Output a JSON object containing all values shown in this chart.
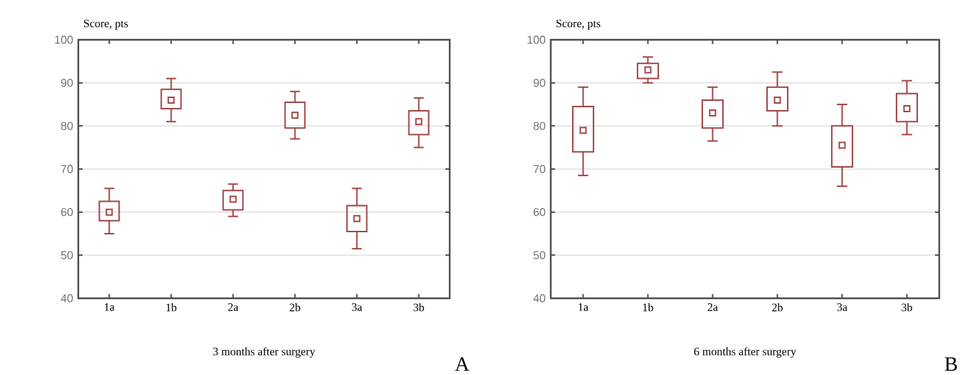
{
  "chart_data": [
    {
      "type": "box",
      "ylabel": "Score, pts",
      "xlabel": "3 months after surgery",
      "annotations": [
        "A"
      ],
      "color": "#a04444",
      "grid": "y",
      "ylim": [
        40,
        100
      ],
      "yticks": [
        40,
        50,
        60,
        70,
        80,
        90,
        100
      ],
      "categories": [
        "1a",
        "1b",
        "2a",
        "2b",
        "3a",
        "3b"
      ],
      "boxes": [
        {
          "low": 55,
          "q1": 58,
          "median": 60,
          "q3": 62.5,
          "high": 65.5
        },
        {
          "low": 81,
          "q1": 84,
          "median": 86,
          "q3": 88.5,
          "high": 91
        },
        {
          "low": 59,
          "q1": 60.5,
          "median": 63,
          "q3": 65,
          "high": 66.5
        },
        {
          "low": 77,
          "q1": 79.5,
          "median": 82.5,
          "q3": 85.5,
          "high": 88
        },
        {
          "low": 51.5,
          "q1": 55.5,
          "median": 58.5,
          "q3": 61.5,
          "high": 65.5
        },
        {
          "low": 75,
          "q1": 78,
          "median": 81,
          "q3": 83.5,
          "high": 86.5
        }
      ]
    },
    {
      "type": "box",
      "ylabel": "Score, pts",
      "xlabel": "6 months after surgery",
      "annotations": [
        "B"
      ],
      "color": "#a04444",
      "grid": "y",
      "ylim": [
        40,
        100
      ],
      "yticks": [
        40,
        50,
        60,
        70,
        80,
        90,
        100
      ],
      "categories": [
        "1a",
        "1b",
        "2a",
        "2b",
        "3a",
        "3b"
      ],
      "boxes": [
        {
          "low": 68.5,
          "q1": 74,
          "median": 79,
          "q3": 84.5,
          "high": 89
        },
        {
          "low": 90,
          "q1": 91,
          "median": 93,
          "q3": 94.5,
          "high": 96
        },
        {
          "low": 76.5,
          "q1": 79.5,
          "median": 83,
          "q3": 86,
          "high": 89
        },
        {
          "low": 80,
          "q1": 83.5,
          "median": 86,
          "q3": 89,
          "high": 92.5
        },
        {
          "low": 66,
          "q1": 70.5,
          "median": 75.5,
          "q3": 80,
          "high": 85
        },
        {
          "low": 78,
          "q1": 81,
          "median": 84,
          "q3": 87.5,
          "high": 90.5
        }
      ]
    }
  ]
}
